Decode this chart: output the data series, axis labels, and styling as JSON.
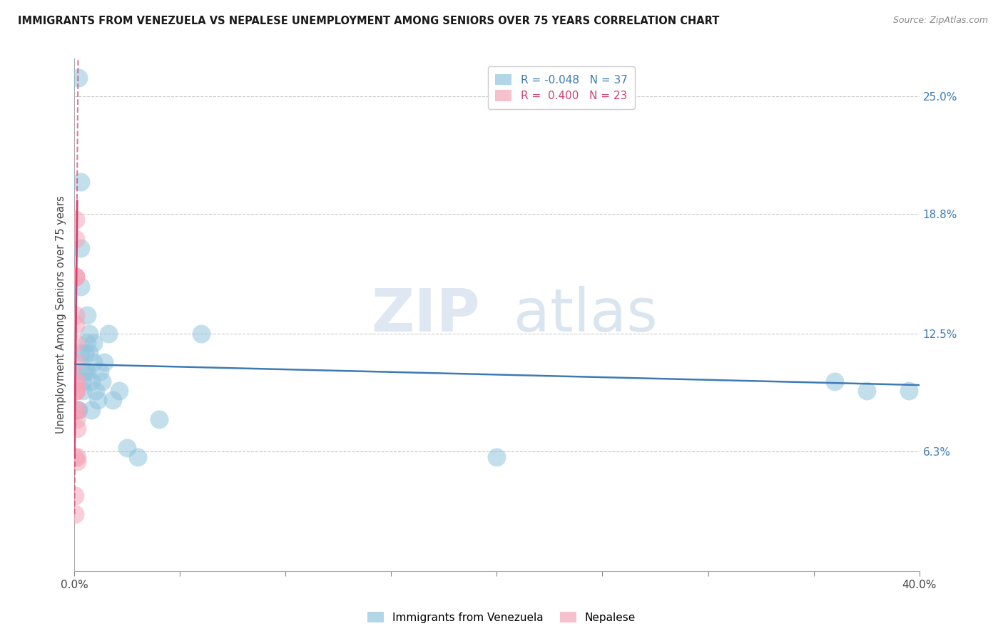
{
  "title": "IMMIGRANTS FROM VENEZUELA VS NEPALESE UNEMPLOYMENT AMONG SENIORS OVER 75 YEARS CORRELATION CHART",
  "source": "Source: ZipAtlas.com",
  "ylabel": "Unemployment Among Seniors over 75 years",
  "right_yticks": [
    0.063,
    0.125,
    0.188,
    0.25
  ],
  "right_yticklabels": [
    "6.3%",
    "12.5%",
    "18.8%",
    "25.0%"
  ],
  "legend_blue_R": "-0.048",
  "legend_blue_N": "37",
  "legend_pink_R": "0.400",
  "legend_pink_N": "23",
  "blue_color": "#92c5de",
  "pink_color": "#f4a6b8",
  "blue_line_color": "#3d7ab5",
  "pink_line_color": "#d44070",
  "watermark_zip": "ZIP",
  "watermark_atlas": "atlas",
  "blue_x": [
    0.0015,
    0.002,
    0.002,
    0.003,
    0.003,
    0.003,
    0.003,
    0.004,
    0.004,
    0.004,
    0.005,
    0.005,
    0.006,
    0.006,
    0.006,
    0.007,
    0.007,
    0.008,
    0.008,
    0.009,
    0.009,
    0.01,
    0.011,
    0.012,
    0.013,
    0.014,
    0.016,
    0.018,
    0.021,
    0.025,
    0.03,
    0.04,
    0.06,
    0.2,
    0.36,
    0.375,
    0.395
  ],
  "blue_y": [
    0.085,
    0.085,
    0.26,
    0.205,
    0.17,
    0.115,
    0.15,
    0.105,
    0.1,
    0.095,
    0.115,
    0.105,
    0.135,
    0.12,
    0.105,
    0.115,
    0.125,
    0.085,
    0.1,
    0.11,
    0.12,
    0.095,
    0.09,
    0.105,
    0.1,
    0.11,
    0.125,
    0.09,
    0.095,
    0.065,
    0.06,
    0.08,
    0.125,
    0.06,
    0.1,
    0.095,
    0.095
  ],
  "pink_x": [
    0.0002,
    0.0002,
    0.0003,
    0.0004,
    0.0004,
    0.0005,
    0.0005,
    0.0005,
    0.0006,
    0.0006,
    0.0007,
    0.0007,
    0.0007,
    0.0008,
    0.0008,
    0.0009,
    0.0009,
    0.0009,
    0.001,
    0.001,
    0.0011,
    0.0012,
    0.0013
  ],
  "pink_y": [
    0.04,
    0.03,
    0.06,
    0.185,
    0.155,
    0.175,
    0.155,
    0.135,
    0.155,
    0.13,
    0.12,
    0.11,
    0.095,
    0.095,
    0.085,
    0.085,
    0.1,
    0.08,
    0.1,
    0.095,
    0.075,
    0.06,
    0.058
  ],
  "xlim": [
    0.0,
    0.4
  ],
  "ylim": [
    0.0,
    0.27
  ],
  "xticks": [
    0.0,
    0.05,
    0.1,
    0.15,
    0.2,
    0.25,
    0.3,
    0.35,
    0.4
  ],
  "xticklabels": [
    "0.0%",
    "",
    "",
    "",
    "",
    "",
    "",
    "",
    "40.0%"
  ],
  "blue_trendline_x0": 0.0,
  "blue_trendline_x1": 0.4,
  "blue_trendline_y0": 0.109,
  "blue_trendline_y1": 0.098,
  "pink_trendline_x0": 0.0,
  "pink_trendline_x1": 0.0013,
  "pink_trendline_y0": 0.06,
  "pink_trendline_y1": 0.195
}
